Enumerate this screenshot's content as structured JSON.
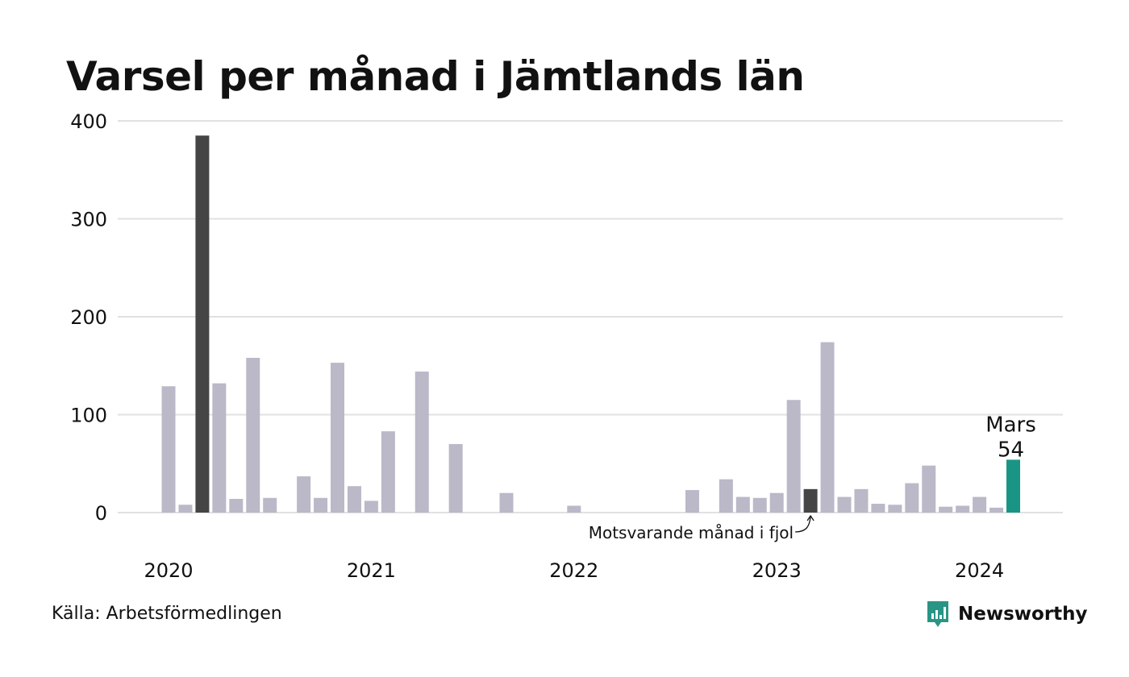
{
  "title": "Varsel per månad i Jämtlands län",
  "source": "Källa: Arbetsförmedlingen",
  "brand": {
    "name": "Newsworthy",
    "logo_icon": "newsworthy-logo-icon"
  },
  "colors": {
    "bar_default": "#bbb8c8",
    "bar_highlight": "#454545",
    "bar_current": "#1a9585",
    "grid": "#e1e1e1",
    "brand": "#2a9585"
  },
  "annotations": {
    "current_label": "Mars",
    "current_value": "54",
    "comparison_label": "Motsvarande månad i fjol"
  },
  "chart_data": {
    "type": "bar",
    "title": "Varsel per månad i Jämtlands län",
    "xlabel": "",
    "ylabel": "",
    "ylim": [
      0,
      400
    ],
    "yticks": [
      0,
      100,
      200,
      300,
      400
    ],
    "xtick_labels": [
      "2020",
      "2021",
      "2022",
      "2023",
      "2024"
    ],
    "grid": true,
    "legend": "none",
    "categories": [
      "2020-01",
      "2020-02",
      "2020-03",
      "2020-04",
      "2020-05",
      "2020-06",
      "2020-07",
      "2020-08",
      "2020-09",
      "2020-10",
      "2020-11",
      "2020-12",
      "2021-01",
      "2021-02",
      "2021-03",
      "2021-04",
      "2021-05",
      "2021-06",
      "2021-07",
      "2021-08",
      "2021-09",
      "2021-10",
      "2021-11",
      "2021-12",
      "2022-01",
      "2022-02",
      "2022-03",
      "2022-04",
      "2022-05",
      "2022-06",
      "2022-07",
      "2022-08",
      "2022-09",
      "2022-10",
      "2022-11",
      "2022-12",
      "2023-01",
      "2023-02",
      "2023-03",
      "2023-04",
      "2023-05",
      "2023-06",
      "2023-07",
      "2023-08",
      "2023-09",
      "2023-10",
      "2023-11",
      "2023-12",
      "2024-01",
      "2024-02",
      "2024-03"
    ],
    "values": [
      129,
      8,
      385,
      132,
      14,
      158,
      15,
      0,
      37,
      15,
      153,
      27,
      12,
      83,
      0,
      144,
      0,
      70,
      0,
      0,
      20,
      0,
      0,
      0,
      7,
      0,
      0,
      0,
      0,
      0,
      0,
      23,
      0,
      34,
      16,
      15,
      20,
      115,
      24,
      174,
      16,
      24,
      9,
      8,
      30,
      48,
      6,
      7,
      16,
      5,
      54
    ],
    "highlight": [
      "2020-03",
      "2023-03"
    ],
    "current": "2024-03"
  }
}
